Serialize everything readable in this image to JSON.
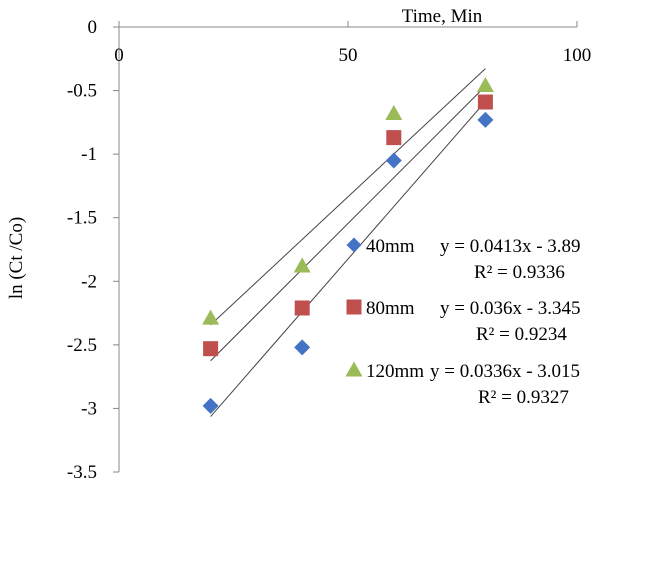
{
  "chart_data": {
    "type": "scatter",
    "title": "",
    "xlabel": "Time, Min",
    "ylabel": "ln (Ct /Co)",
    "xlim": [
      0,
      100
    ],
    "ylim": [
      -3.5,
      0
    ],
    "x_ticks": [
      0,
      50,
      100
    ],
    "y_ticks": [
      0,
      -0.5,
      -1,
      -1.5,
      -2,
      -2.5,
      -3,
      -3.5
    ],
    "x_axis_position": "top",
    "grid": false,
    "legend_position": "right",
    "series": [
      {
        "name": "40mm",
        "marker": "diamond",
        "color": "#4472C4",
        "x": [
          20,
          40,
          60,
          80
        ],
        "y": [
          -2.98,
          -2.52,
          -1.05,
          -0.73
        ],
        "trendline": {
          "slope": 0.0413,
          "intercept": -3.89
        },
        "equation": "y = 0.0413x  - 3.89",
        "r2": "R² = 0.9336"
      },
      {
        "name": "80mm",
        "marker": "square",
        "color": "#C0504D",
        "x": [
          20,
          40,
          60,
          80
        ],
        "y": [
          -2.53,
          -2.21,
          -0.87,
          -0.59
        ],
        "trendline": {
          "slope": 0.036,
          "intercept": -3.345
        },
        "equation": "y = 0.036x  - 3.345",
        "r2": "R² = 0.9234"
      },
      {
        "name": "120mm",
        "marker": "triangle",
        "color": "#9BBB59",
        "x": [
          20,
          40,
          60,
          80
        ],
        "y": [
          -2.29,
          -1.88,
          -0.68,
          -0.46
        ],
        "trendline": {
          "slope": 0.0336,
          "intercept": -3.015
        },
        "equation": "y = 0.0336x  - 3.015",
        "r2": "R² = 0.9327"
      }
    ]
  }
}
